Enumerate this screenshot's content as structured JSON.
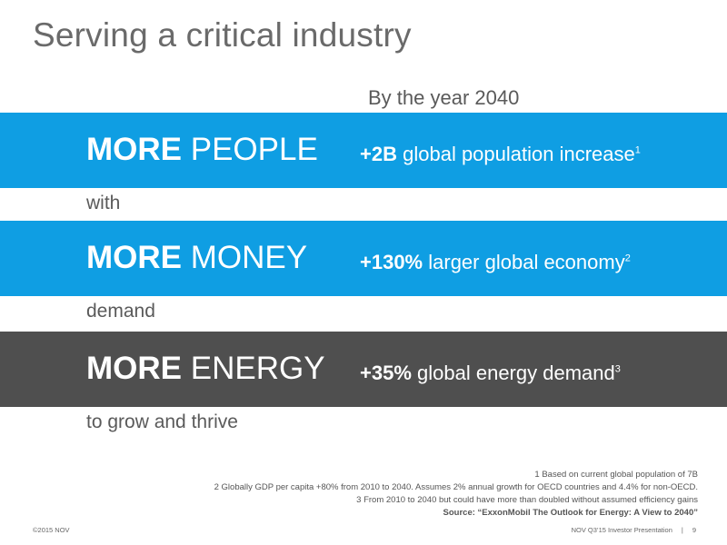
{
  "title": "Serving a critical industry",
  "subtitle": "By the year 2040",
  "rows": [
    {
      "label_bold": "MORE",
      "label_rest": "PEOPLE",
      "stat_bold": "+2B",
      "stat_rest": "global population increase",
      "footnote_ref": "1",
      "color": "#0f9ee3"
    },
    {
      "label_bold": "MORE",
      "label_rest": "MONEY",
      "stat_bold": "+130%",
      "stat_rest": "larger global economy",
      "footnote_ref": "2",
      "color": "#0f9ee3"
    },
    {
      "label_bold": "MORE",
      "label_rest": "ENERGY",
      "stat_bold": "+35%",
      "stat_rest": "global energy demand",
      "footnote_ref": "3",
      "color": "#4f4f4f"
    }
  ],
  "connectors": [
    "with",
    "demand",
    "to grow and thrive"
  ],
  "footnotes": [
    "1 Based on current global population of 7B",
    "2 Globally GDP per capita +80% from 2010 to 2040. Assumes 2% annual growth for OECD countries and 4.4% for non-OECD.",
    "3  From 2010 to 2040 but could have more than doubled without assumed efficiency gains"
  ],
  "source": "Source: “ExxonMobil The Outlook for Energy: A View to 2040”",
  "footer": {
    "copyright": "©2015 NOV",
    "presentation": "NOV Q3’15 Investor Presentation",
    "separator": "|",
    "page_number": "9"
  }
}
